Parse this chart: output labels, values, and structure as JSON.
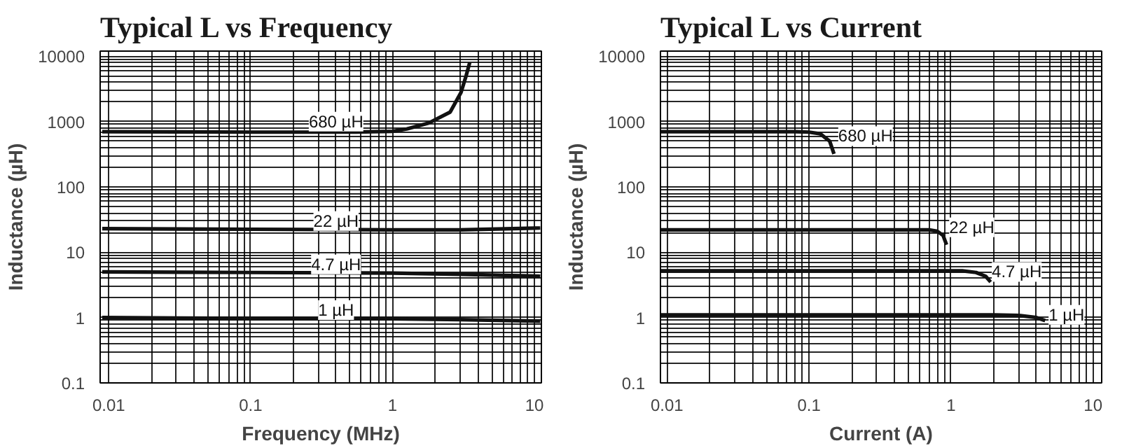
{
  "chart_data": [
    {
      "type": "line",
      "title": "Typical L vs Frequency",
      "xlabel": "Frequency (MHz)",
      "ylabel": "Inductance (µH)",
      "log": "xy",
      "grid": true,
      "marker": "none",
      "line_style": "solid",
      "xlim": [
        0.0087,
        11.2
      ],
      "ylim": [
        0.1,
        12000
      ],
      "xticks": [
        0.01,
        {
          "value": 0.02,
          "label": null
        },
        {
          "value": 0.03,
          "label": null
        },
        {
          "value": 0.04,
          "label": null
        },
        {
          "value": 0.05,
          "label": null
        },
        {
          "value": 0.06,
          "label": null
        },
        {
          "value": 0.07,
          "label": null
        },
        {
          "value": 0.08,
          "label": null
        },
        {
          "value": 0.09,
          "label": null
        },
        0.1,
        {
          "value": 0.2,
          "label": null
        },
        {
          "value": 0.3,
          "label": null
        },
        {
          "value": 0.4,
          "label": null
        },
        {
          "value": 0.5,
          "label": null
        },
        {
          "value": 0.6,
          "label": null
        },
        {
          "value": 0.7,
          "label": null
        },
        {
          "value": 0.8,
          "label": null
        },
        {
          "value": 0.9,
          "label": null
        },
        1,
        {
          "value": 2,
          "label": null
        },
        {
          "value": 3,
          "label": null
        },
        {
          "value": 4,
          "label": null
        },
        {
          "value": 5,
          "label": null
        },
        {
          "value": 6,
          "label": null
        },
        {
          "value": 7,
          "label": null
        },
        {
          "value": 8,
          "label": null
        },
        {
          "value": 9,
          "label": null
        },
        10
      ],
      "yticks": [
        0.1,
        {
          "value": 0.2,
          "label": null
        },
        {
          "value": 0.3,
          "label": null
        },
        {
          "value": 0.4,
          "label": null
        },
        {
          "value": 0.5,
          "label": null
        },
        {
          "value": 0.6,
          "label": null
        },
        {
          "value": 0.7,
          "label": null
        },
        {
          "value": 0.8,
          "label": null
        },
        {
          "value": 0.9,
          "label": null
        },
        1,
        {
          "value": 2,
          "label": null
        },
        {
          "value": 3,
          "label": null
        },
        {
          "value": 4,
          "label": null
        },
        {
          "value": 5,
          "label": null
        },
        {
          "value": 6,
          "label": null
        },
        {
          "value": 7,
          "label": null
        },
        {
          "value": 8,
          "label": null
        },
        {
          "value": 9,
          "label": null
        },
        10,
        {
          "value": 20,
          "label": null
        },
        {
          "value": 30,
          "label": null
        },
        {
          "value": 40,
          "label": null
        },
        {
          "value": 50,
          "label": null
        },
        {
          "value": 60,
          "label": null
        },
        {
          "value": 70,
          "label": null
        },
        {
          "value": 80,
          "label": null
        },
        {
          "value": 90,
          "label": null
        },
        100,
        {
          "value": 200,
          "label": null
        },
        {
          "value": 300,
          "label": null
        },
        {
          "value": 400,
          "label": null
        },
        {
          "value": 500,
          "label": null
        },
        {
          "value": 600,
          "label": null
        },
        {
          "value": 700,
          "label": null
        },
        {
          "value": 800,
          "label": null
        },
        {
          "value": 900,
          "label": null
        },
        1000,
        {
          "value": 2000,
          "label": null
        },
        {
          "value": 3000,
          "label": null
        },
        {
          "value": 4000,
          "label": null
        },
        {
          "value": 5000,
          "label": null
        },
        {
          "value": 6000,
          "label": null
        },
        {
          "value": 7000,
          "label": null
        },
        {
          "value": 8000,
          "label": null
        },
        {
          "value": 9000,
          "label": null
        },
        10000
      ],
      "series": [
        {
          "color": "#111111",
          "x": [
            0.009,
            0.1,
            0.5,
            1,
            1.26,
            1.8,
            2.55,
            3.04,
            3.3,
            3.5
          ],
          "values": [
            700,
            690,
            690,
            710,
            770,
            950,
            1400,
            2800,
            5000,
            8000
          ]
        },
        {
          "color": "#111111",
          "x": [
            0.009,
            0.1,
            1,
            3,
            11
          ],
          "values": [
            23,
            22.5,
            22,
            22,
            23.5
          ]
        },
        {
          "color": "#111111",
          "x": [
            0.009,
            0.1,
            1,
            3,
            11
          ],
          "values": [
            5,
            4.9,
            4.8,
            4.6,
            4.3
          ]
        },
        {
          "color": "#111111",
          "x": [
            0.009,
            0.1,
            1,
            3,
            11
          ],
          "values": [
            1.0,
            0.97,
            0.96,
            0.93,
            0.88
          ]
        }
      ],
      "annotations": [
        {
          "text": "680 µH",
          "x": 0.4,
          "y": 1000
        },
        {
          "text": "22 µH",
          "x": 0.4,
          "y": 30
        },
        {
          "text": "4.7 µH",
          "x": 0.4,
          "y": 6.5
        },
        {
          "text": "1 µH",
          "x": 0.4,
          "y": 1.3
        }
      ]
    },
    {
      "type": "line",
      "title": "Typical L vs Current",
      "xlabel": "Current (A)",
      "ylabel": "Inductance (µH)",
      "log": "xy",
      "grid": true,
      "marker": "none",
      "line_style": "solid",
      "xlim": [
        0.009,
        11.5
      ],
      "ylim": [
        0.1,
        12000
      ],
      "xticks": [
        0.01,
        {
          "value": 0.02,
          "label": null
        },
        {
          "value": 0.03,
          "label": null
        },
        {
          "value": 0.04,
          "label": null
        },
        {
          "value": 0.05,
          "label": null
        },
        {
          "value": 0.06,
          "label": null
        },
        {
          "value": 0.07,
          "label": null
        },
        {
          "value": 0.08,
          "label": null
        },
        {
          "value": 0.09,
          "label": null
        },
        0.1,
        {
          "value": 0.2,
          "label": null
        },
        {
          "value": 0.3,
          "label": null
        },
        {
          "value": 0.4,
          "label": null
        },
        {
          "value": 0.5,
          "label": null
        },
        {
          "value": 0.6,
          "label": null
        },
        {
          "value": 0.7,
          "label": null
        },
        {
          "value": 0.8,
          "label": null
        },
        {
          "value": 0.9,
          "label": null
        },
        1,
        {
          "value": 2,
          "label": null
        },
        {
          "value": 3,
          "label": null
        },
        {
          "value": 4,
          "label": null
        },
        {
          "value": 5,
          "label": null
        },
        {
          "value": 6,
          "label": null
        },
        {
          "value": 7,
          "label": null
        },
        {
          "value": 8,
          "label": null
        },
        {
          "value": 9,
          "label": null
        },
        10
      ],
      "yticks": [
        0.1,
        {
          "value": 0.2,
          "label": null
        },
        {
          "value": 0.3,
          "label": null
        },
        {
          "value": 0.4,
          "label": null
        },
        {
          "value": 0.5,
          "label": null
        },
        {
          "value": 0.6,
          "label": null
        },
        {
          "value": 0.7,
          "label": null
        },
        {
          "value": 0.8,
          "label": null
        },
        {
          "value": 0.9,
          "label": null
        },
        1,
        {
          "value": 2,
          "label": null
        },
        {
          "value": 3,
          "label": null
        },
        {
          "value": 4,
          "label": null
        },
        {
          "value": 5,
          "label": null
        },
        {
          "value": 6,
          "label": null
        },
        {
          "value": 7,
          "label": null
        },
        {
          "value": 8,
          "label": null
        },
        {
          "value": 9,
          "label": null
        },
        10,
        {
          "value": 20,
          "label": null
        },
        {
          "value": 30,
          "label": null
        },
        {
          "value": 40,
          "label": null
        },
        {
          "value": 50,
          "label": null
        },
        {
          "value": 60,
          "label": null
        },
        {
          "value": 70,
          "label": null
        },
        {
          "value": 80,
          "label": null
        },
        {
          "value": 90,
          "label": null
        },
        100,
        {
          "value": 200,
          "label": null
        },
        {
          "value": 300,
          "label": null
        },
        {
          "value": 400,
          "label": null
        },
        {
          "value": 500,
          "label": null
        },
        {
          "value": 600,
          "label": null
        },
        {
          "value": 700,
          "label": null
        },
        {
          "value": 800,
          "label": null
        },
        {
          "value": 900,
          "label": null
        },
        1000,
        {
          "value": 2000,
          "label": null
        },
        {
          "value": 3000,
          "label": null
        },
        {
          "value": 4000,
          "label": null
        },
        {
          "value": 5000,
          "label": null
        },
        {
          "value": 6000,
          "label": null
        },
        {
          "value": 7000,
          "label": null
        },
        {
          "value": 8000,
          "label": null
        },
        {
          "value": 9000,
          "label": null
        },
        10000
      ],
      "series": [
        {
          "color": "#111111",
          "x": [
            0.009,
            0.08,
            0.1,
            0.12,
            0.14,
            0.15
          ],
          "values": [
            700,
            700,
            690,
            650,
            500,
            320
          ]
        },
        {
          "color": "#111111",
          "x": [
            0.009,
            0.5,
            0.7,
            0.8,
            0.88,
            0.93
          ],
          "values": [
            22,
            22,
            22,
            21,
            18,
            13
          ]
        },
        {
          "color": "#111111",
          "x": [
            0.009,
            1,
            1.2,
            1.5,
            1.75,
            1.9
          ],
          "values": [
            5.2,
            5.2,
            5.2,
            4.9,
            4.3,
            3.5
          ]
        },
        {
          "color": "#111111",
          "x": [
            0.009,
            2,
            3,
            4,
            4.6
          ],
          "values": [
            1.1,
            1.1,
            1.08,
            1.0,
            0.9
          ]
        }
      ],
      "annotations": [
        {
          "text": "680 µH",
          "x": 0.25,
          "y": 600
        },
        {
          "text": "22 µH",
          "x": 1.4,
          "y": 24
        },
        {
          "text": "4.7 µH",
          "x": 2.9,
          "y": 5
        },
        {
          "text": "1 µH",
          "x": 6.5,
          "y": 1.1
        }
      ]
    }
  ]
}
